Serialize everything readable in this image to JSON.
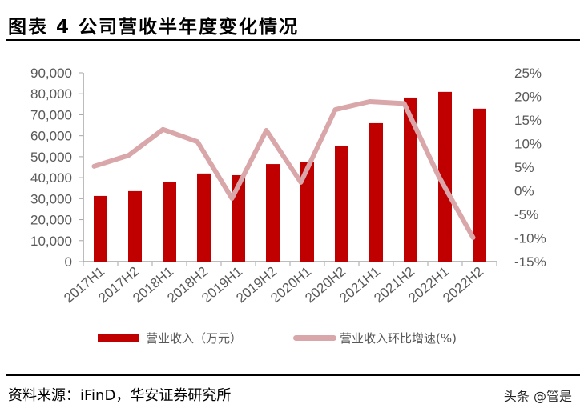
{
  "title": "图表 4 公司营收半年度变化情况",
  "chart_data": {
    "type": "bar+line",
    "categories": [
      "2017H1",
      "2017H2",
      "2018H1",
      "2018H2",
      "2019H1",
      "2019H2",
      "2020H1",
      "2020H2",
      "2021H1",
      "2021H2",
      "2022H1",
      "2022H2"
    ],
    "series": [
      {
        "name": "营业收入（万元）",
        "type": "bar",
        "axis": "left",
        "color": "#c00000",
        "values": [
          31300,
          33600,
          37800,
          42000,
          41200,
          46500,
          47300,
          55300,
          66000,
          78200,
          80900,
          72900
        ]
      },
      {
        "name": "营业收入环比增速(%)",
        "type": "line",
        "axis": "right",
        "color": "#d9a6a9",
        "values": [
          5.2,
          7.5,
          13.0,
          10.4,
          -1.6,
          12.8,
          1.8,
          17.2,
          18.9,
          18.5,
          3.1,
          -9.9
        ]
      }
    ],
    "y_left": {
      "min": 0,
      "max": 90000,
      "step": 10000,
      "ticks": [
        "0",
        "10,000",
        "20,000",
        "30,000",
        "40,000",
        "50,000",
        "60,000",
        "70,000",
        "80,000",
        "90,000"
      ]
    },
    "y_right": {
      "min": -15,
      "max": 25,
      "step": 5,
      "ticks": [
        "-15%",
        "-10%",
        "-5%",
        "0%",
        "5%",
        "10%",
        "15%",
        "20%",
        "25%"
      ]
    },
    "grid": false,
    "legend": "bottom"
  },
  "legend": {
    "bar_label": "营业收入（万元）",
    "line_label": "营业收入环比增速(%)"
  },
  "source": "资料来源：iFinD，华安证券研究所",
  "watermark": "头条 @管是"
}
